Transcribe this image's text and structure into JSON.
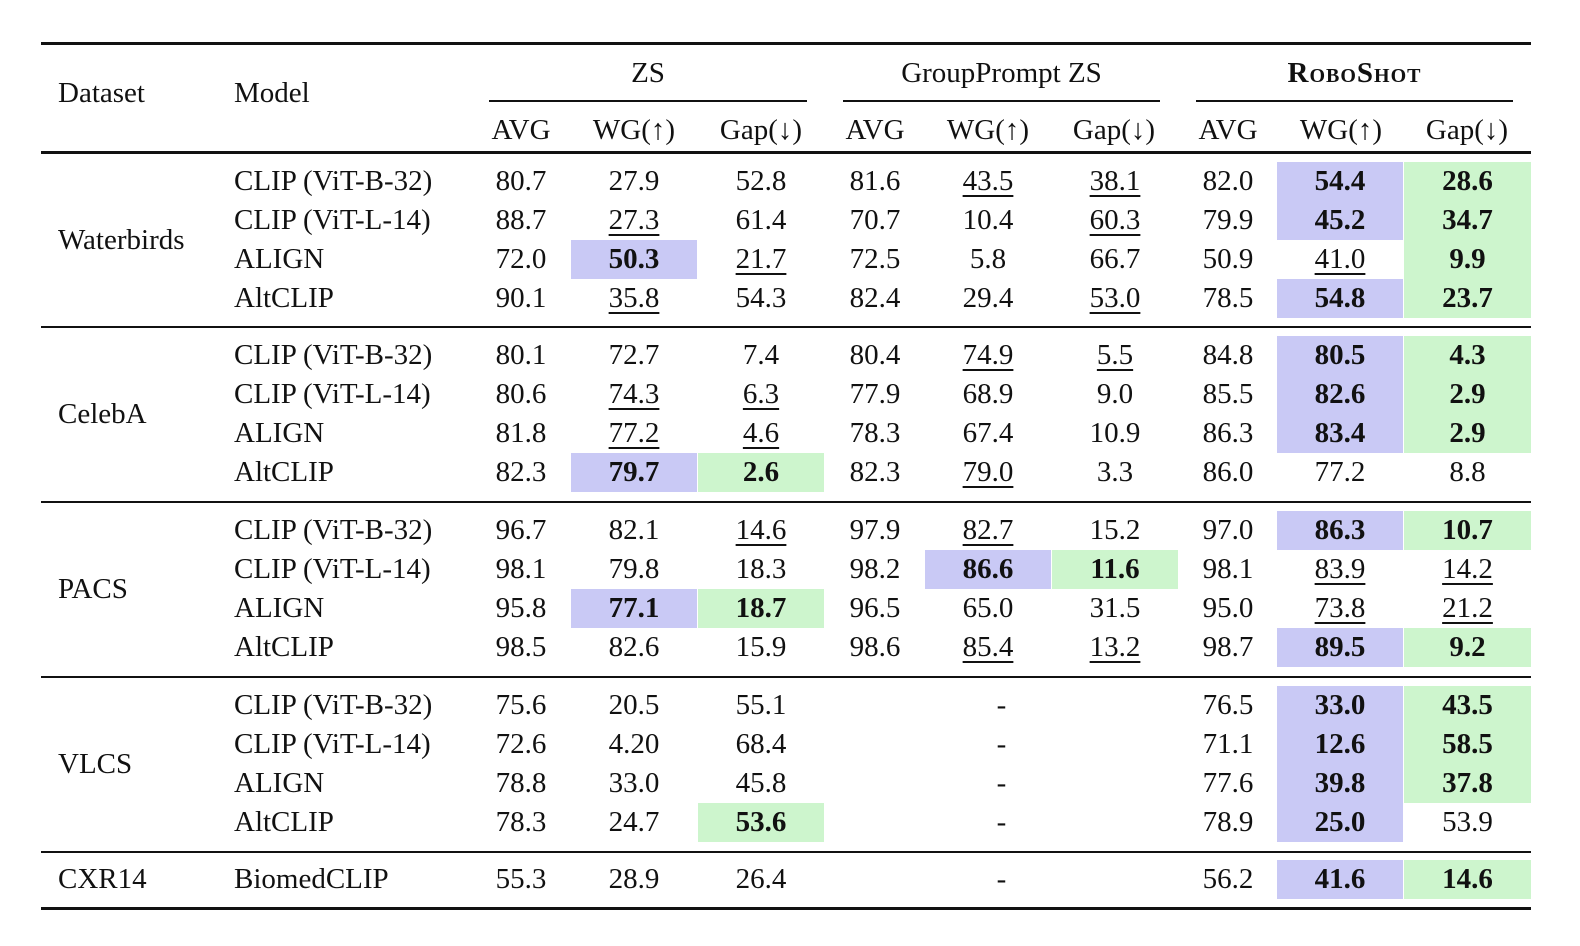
{
  "table": {
    "headers": {
      "dataset": "Dataset",
      "model": "Model",
      "groups": [
        "ZS",
        "GroupPrompt ZS",
        "RoboShot"
      ],
      "subcols": [
        "AVG",
        "WG(↑)",
        "Gap(↓)"
      ]
    },
    "colors": {
      "wg_highlight": "#c9c9f5",
      "gap_highlight": "#cdf5cd"
    },
    "sections": [
      {
        "dataset": "Waterbirds",
        "rows": [
          {
            "model": "CLIP (ViT-B-32)",
            "cells": [
              {
                "v": "80.7"
              },
              {
                "v": "27.9"
              },
              {
                "v": "52.8"
              },
              {
                "v": "81.6"
              },
              {
                "v": "43.5",
                "u": true
              },
              {
                "v": "38.1",
                "u": true
              },
              {
                "v": "82.0"
              },
              {
                "v": "54.4",
                "b": true,
                "hl": "wg"
              },
              {
                "v": "28.6",
                "b": true,
                "hl": "gap"
              }
            ]
          },
          {
            "model": "CLIP (ViT-L-14)",
            "cells": [
              {
                "v": "88.7"
              },
              {
                "v": "27.3",
                "u": true
              },
              {
                "v": "61.4"
              },
              {
                "v": "70.7"
              },
              {
                "v": "10.4"
              },
              {
                "v": "60.3",
                "u": true
              },
              {
                "v": "79.9"
              },
              {
                "v": "45.2",
                "b": true,
                "hl": "wg"
              },
              {
                "v": "34.7",
                "b": true,
                "hl": "gap"
              }
            ]
          },
          {
            "model": "ALIGN",
            "cells": [
              {
                "v": "72.0"
              },
              {
                "v": "50.3",
                "b": true,
                "hl": "wg"
              },
              {
                "v": "21.7",
                "u": true
              },
              {
                "v": "72.5"
              },
              {
                "v": "5.8"
              },
              {
                "v": "66.7"
              },
              {
                "v": "50.9"
              },
              {
                "v": "41.0",
                "u": true
              },
              {
                "v": "9.9",
                "b": true,
                "hl": "gap"
              }
            ]
          },
          {
            "model": "AltCLIP",
            "cells": [
              {
                "v": "90.1"
              },
              {
                "v": "35.8",
                "u": true
              },
              {
                "v": "54.3"
              },
              {
                "v": "82.4"
              },
              {
                "v": "29.4"
              },
              {
                "v": "53.0",
                "u": true
              },
              {
                "v": "78.5"
              },
              {
                "v": "54.8",
                "b": true,
                "hl": "wg"
              },
              {
                "v": "23.7",
                "b": true,
                "hl": "gap"
              }
            ]
          }
        ]
      },
      {
        "dataset": "CelebA",
        "rows": [
          {
            "model": "CLIP (ViT-B-32)",
            "cells": [
              {
                "v": "80.1"
              },
              {
                "v": "72.7"
              },
              {
                "v": "7.4"
              },
              {
                "v": "80.4"
              },
              {
                "v": "74.9",
                "u": true
              },
              {
                "v": "5.5",
                "u": true
              },
              {
                "v": "84.8"
              },
              {
                "v": "80.5",
                "b": true,
                "hl": "wg"
              },
              {
                "v": "4.3",
                "b": true,
                "hl": "gap"
              }
            ]
          },
          {
            "model": "CLIP (ViT-L-14)",
            "cells": [
              {
                "v": "80.6"
              },
              {
                "v": "74.3",
                "u": true
              },
              {
                "v": "6.3",
                "u": true
              },
              {
                "v": "77.9"
              },
              {
                "v": "68.9"
              },
              {
                "v": "9.0"
              },
              {
                "v": "85.5"
              },
              {
                "v": "82.6",
                "b": true,
                "hl": "wg"
              },
              {
                "v": "2.9",
                "b": true,
                "hl": "gap"
              }
            ]
          },
          {
            "model": "ALIGN",
            "cells": [
              {
                "v": "81.8"
              },
              {
                "v": "77.2",
                "u": true
              },
              {
                "v": "4.6",
                "u": true
              },
              {
                "v": "78.3"
              },
              {
                "v": "67.4"
              },
              {
                "v": "10.9"
              },
              {
                "v": "86.3"
              },
              {
                "v": "83.4",
                "b": true,
                "hl": "wg"
              },
              {
                "v": "2.9",
                "b": true,
                "hl": "gap"
              }
            ]
          },
          {
            "model": "AltCLIP",
            "cells": [
              {
                "v": "82.3"
              },
              {
                "v": "79.7",
                "b": true,
                "hl": "wg"
              },
              {
                "v": "2.6",
                "b": true,
                "hl": "gap"
              },
              {
                "v": "82.3"
              },
              {
                "v": "79.0",
                "u": true
              },
              {
                "v": "3.3"
              },
              {
                "v": "86.0"
              },
              {
                "v": "77.2"
              },
              {
                "v": "8.8"
              }
            ]
          }
        ]
      },
      {
        "dataset": "PACS",
        "rows": [
          {
            "model": "CLIP (ViT-B-32)",
            "cells": [
              {
                "v": "96.7"
              },
              {
                "v": "82.1"
              },
              {
                "v": "14.6",
                "u": true
              },
              {
                "v": "97.9"
              },
              {
                "v": "82.7",
                "u": true
              },
              {
                "v": "15.2"
              },
              {
                "v": "97.0"
              },
              {
                "v": "86.3",
                "b": true,
                "hl": "wg"
              },
              {
                "v": "10.7",
                "b": true,
                "hl": "gap"
              }
            ]
          },
          {
            "model": "CLIP (ViT-L-14)",
            "cells": [
              {
                "v": "98.1"
              },
              {
                "v": "79.8"
              },
              {
                "v": "18.3"
              },
              {
                "v": "98.2"
              },
              {
                "v": "86.6",
                "b": true,
                "hl": "wg"
              },
              {
                "v": "11.6",
                "b": true,
                "hl": "gap"
              },
              {
                "v": "98.1"
              },
              {
                "v": "83.9",
                "u": true
              },
              {
                "v": "14.2",
                "u": true
              }
            ]
          },
          {
            "model": "ALIGN",
            "cells": [
              {
                "v": "95.8"
              },
              {
                "v": "77.1",
                "b": true,
                "hl": "wg"
              },
              {
                "v": "18.7",
                "b": true,
                "hl": "gap"
              },
              {
                "v": "96.5"
              },
              {
                "v": "65.0"
              },
              {
                "v": "31.5"
              },
              {
                "v": "95.0"
              },
              {
                "v": "73.8",
                "u": true
              },
              {
                "v": "21.2",
                "u": true
              }
            ]
          },
          {
            "model": "AltCLIP",
            "cells": [
              {
                "v": "98.5"
              },
              {
                "v": "82.6"
              },
              {
                "v": "15.9"
              },
              {
                "v": "98.6"
              },
              {
                "v": "85.4",
                "u": true
              },
              {
                "v": "13.2",
                "u": true
              },
              {
                "v": "98.7"
              },
              {
                "v": "89.5",
                "b": true,
                "hl": "wg"
              },
              {
                "v": "9.2",
                "b": true,
                "hl": "gap"
              }
            ]
          }
        ]
      },
      {
        "dataset": "VLCS",
        "rows": [
          {
            "model": "CLIP (ViT-B-32)",
            "cells": [
              {
                "v": "75.6"
              },
              {
                "v": "20.5"
              },
              {
                "v": "55.1"
              },
              null,
              {
                "v": "-"
              },
              null,
              {
                "v": "76.5"
              },
              {
                "v": "33.0",
                "b": true,
                "hl": "wg"
              },
              {
                "v": "43.5",
                "b": true,
                "hl": "gap"
              }
            ]
          },
          {
            "model": "CLIP (ViT-L-14)",
            "cells": [
              {
                "v": "72.6"
              },
              {
                "v": "4.20"
              },
              {
                "v": "68.4"
              },
              null,
              {
                "v": "-"
              },
              null,
              {
                "v": "71.1"
              },
              {
                "v": "12.6",
                "b": true,
                "hl": "wg"
              },
              {
                "v": "58.5",
                "b": true,
                "hl": "gap"
              }
            ]
          },
          {
            "model": "ALIGN",
            "cells": [
              {
                "v": "78.8"
              },
              {
                "v": "33.0"
              },
              {
                "v": "45.8"
              },
              null,
              {
                "v": "-"
              },
              null,
              {
                "v": "77.6"
              },
              {
                "v": "39.8",
                "b": true,
                "hl": "wg"
              },
              {
                "v": "37.8",
                "b": true,
                "hl": "gap"
              }
            ]
          },
          {
            "model": "AltCLIP",
            "cells": [
              {
                "v": "78.3"
              },
              {
                "v": "24.7"
              },
              {
                "v": "53.6",
                "b": true,
                "hl": "gap"
              },
              null,
              {
                "v": "-"
              },
              null,
              {
                "v": "78.9"
              },
              {
                "v": "25.0",
                "b": true,
                "hl": "wg"
              },
              {
                "v": "53.9"
              }
            ]
          }
        ]
      },
      {
        "dataset": "CXR14",
        "rows": [
          {
            "model": "BiomedCLIP",
            "cells": [
              {
                "v": "55.3"
              },
              {
                "v": "28.9"
              },
              {
                "v": "26.4"
              },
              null,
              {
                "v": "-"
              },
              null,
              {
                "v": "56.2"
              },
              {
                "v": "41.6",
                "b": true,
                "hl": "wg"
              },
              {
                "v": "14.6",
                "b": true,
                "hl": "gap"
              }
            ]
          }
        ]
      }
    ]
  }
}
